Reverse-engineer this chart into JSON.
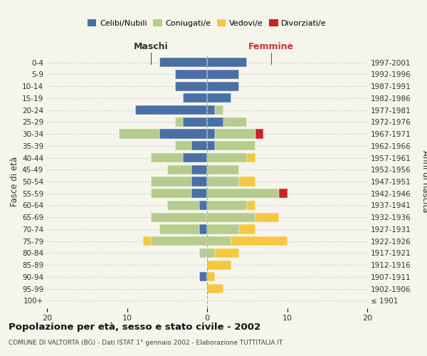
{
  "age_groups": [
    "100+",
    "95-99",
    "90-94",
    "85-89",
    "80-84",
    "75-79",
    "70-74",
    "65-69",
    "60-64",
    "55-59",
    "50-54",
    "45-49",
    "40-44",
    "35-39",
    "30-34",
    "25-29",
    "20-24",
    "15-19",
    "10-14",
    "5-9",
    "0-4"
  ],
  "birth_years": [
    "≤ 1901",
    "1902-1906",
    "1907-1911",
    "1912-1916",
    "1917-1921",
    "1922-1926",
    "1927-1931",
    "1932-1936",
    "1937-1941",
    "1942-1946",
    "1947-1951",
    "1952-1956",
    "1957-1961",
    "1962-1966",
    "1967-1971",
    "1972-1976",
    "1977-1981",
    "1982-1986",
    "1987-1991",
    "1992-1996",
    "1997-2001"
  ],
  "maschi": {
    "celibi": [
      0,
      0,
      1,
      0,
      0,
      0,
      1,
      0,
      1,
      2,
      2,
      2,
      3,
      2,
      6,
      3,
      9,
      3,
      4,
      4,
      6
    ],
    "coniugati": [
      0,
      0,
      0,
      0,
      1,
      7,
      5,
      7,
      4,
      5,
      5,
      3,
      4,
      2,
      5,
      1,
      0,
      0,
      0,
      0,
      0
    ],
    "vedovi": [
      0,
      0,
      0,
      0,
      0,
      1,
      0,
      0,
      0,
      0,
      0,
      0,
      0,
      0,
      0,
      0,
      0,
      0,
      0,
      0,
      0
    ],
    "divorziati": [
      0,
      0,
      0,
      0,
      0,
      0,
      0,
      0,
      0,
      0,
      0,
      0,
      0,
      0,
      0,
      0,
      0,
      0,
      0,
      0,
      0
    ]
  },
  "femmine": {
    "nubili": [
      0,
      0,
      0,
      0,
      0,
      0,
      0,
      0,
      0,
      0,
      0,
      0,
      0,
      1,
      1,
      2,
      1,
      3,
      4,
      4,
      5
    ],
    "coniugate": [
      0,
      0,
      0,
      0,
      1,
      3,
      4,
      6,
      5,
      9,
      4,
      4,
      5,
      5,
      5,
      3,
      1,
      0,
      0,
      0,
      0
    ],
    "vedove": [
      0,
      2,
      1,
      3,
      3,
      7,
      2,
      3,
      1,
      0,
      2,
      0,
      1,
      0,
      0,
      0,
      0,
      0,
      0,
      0,
      0
    ],
    "divorziate": [
      0,
      0,
      0,
      0,
      0,
      0,
      0,
      0,
      0,
      1,
      0,
      0,
      0,
      0,
      1,
      0,
      0,
      0,
      0,
      0,
      0
    ]
  },
  "colors": {
    "celibi_nubili": "#4a6fa5",
    "coniugati": "#b5cc8e",
    "vedovi": "#f5c842",
    "divorziati": "#cc2222"
  },
  "xlim": [
    -20,
    20
  ],
  "xticks": [
    -20,
    -10,
    0,
    10,
    20
  ],
  "xticklabels": [
    "20",
    "10",
    "0",
    "10",
    "20"
  ],
  "title": "Popolazione per età, sesso e stato civile - 2002",
  "subtitle": "COMUNE DI VALTORTA (BG) - Dati ISTAT 1° gennaio 2002 - Elaborazione TUTTITALIA.IT",
  "ylabel_left": "Fasce di età",
  "ylabel_right": "Anni di nascita",
  "bg_color": "#f5f5eb"
}
